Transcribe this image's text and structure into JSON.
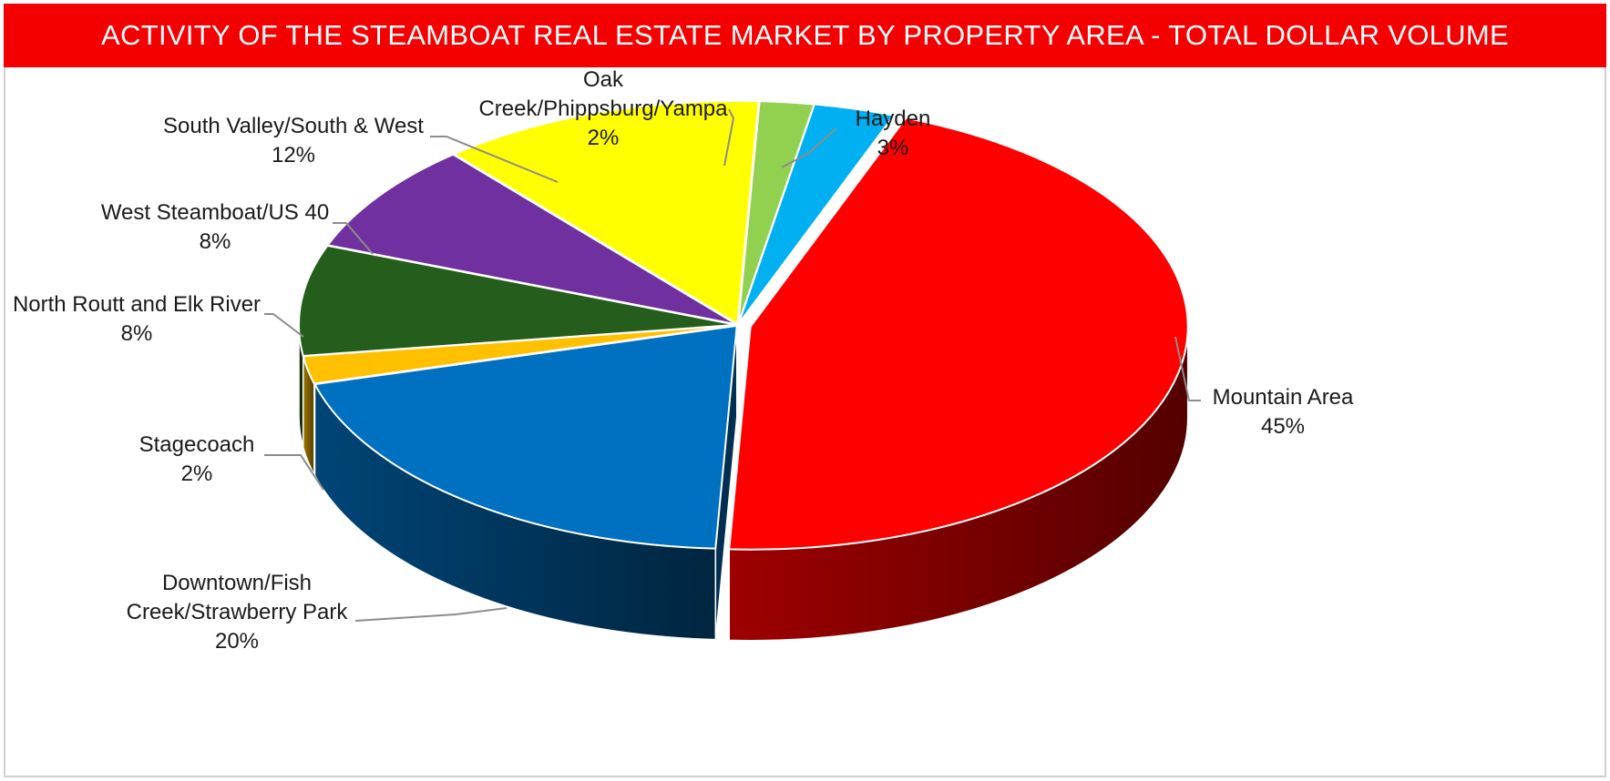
{
  "chart_data": {
    "type": "pie",
    "title": "ACTIVITY OF THE STEAMBOAT REAL ESTATE MARKET BY PROPERTY AREA - TOTAL DOLLAR VOLUME",
    "slices": [
      {
        "label": [
          "Hayden"
        ],
        "value": 3,
        "pct_text": "3%",
        "color": "#00b0f0"
      },
      {
        "label": [
          "Mountain Area"
        ],
        "value": 45,
        "pct_text": "45%",
        "color": "#ff0000"
      },
      {
        "label": [
          "Downtown/Fish",
          "Creek/Strawberry Park"
        ],
        "value": 20,
        "pct_text": "20%",
        "color": "#0070c0"
      },
      {
        "label": [
          "Stagecoach"
        ],
        "value": 2,
        "pct_text": "2%",
        "color": "#ffc000"
      },
      {
        "label": [
          "North Routt and Elk River"
        ],
        "value": 8,
        "pct_text": "8%",
        "color": "#255e1c"
      },
      {
        "label": [
          "West Steamboat/US 40"
        ],
        "value": 8,
        "pct_text": "8%",
        "color": "#7030a0"
      },
      {
        "label": [
          "South Valley/South & West"
        ],
        "value": 12,
        "pct_text": "12%",
        "color": "#ffff00"
      },
      {
        "label": [
          "Oak",
          "Creek/Phippsburg/Yampa"
        ],
        "value": 2,
        "pct_text": "2%",
        "color": "#92d050"
      }
    ],
    "legend": "none",
    "data_labels": "outside-with-leader-lines"
  }
}
